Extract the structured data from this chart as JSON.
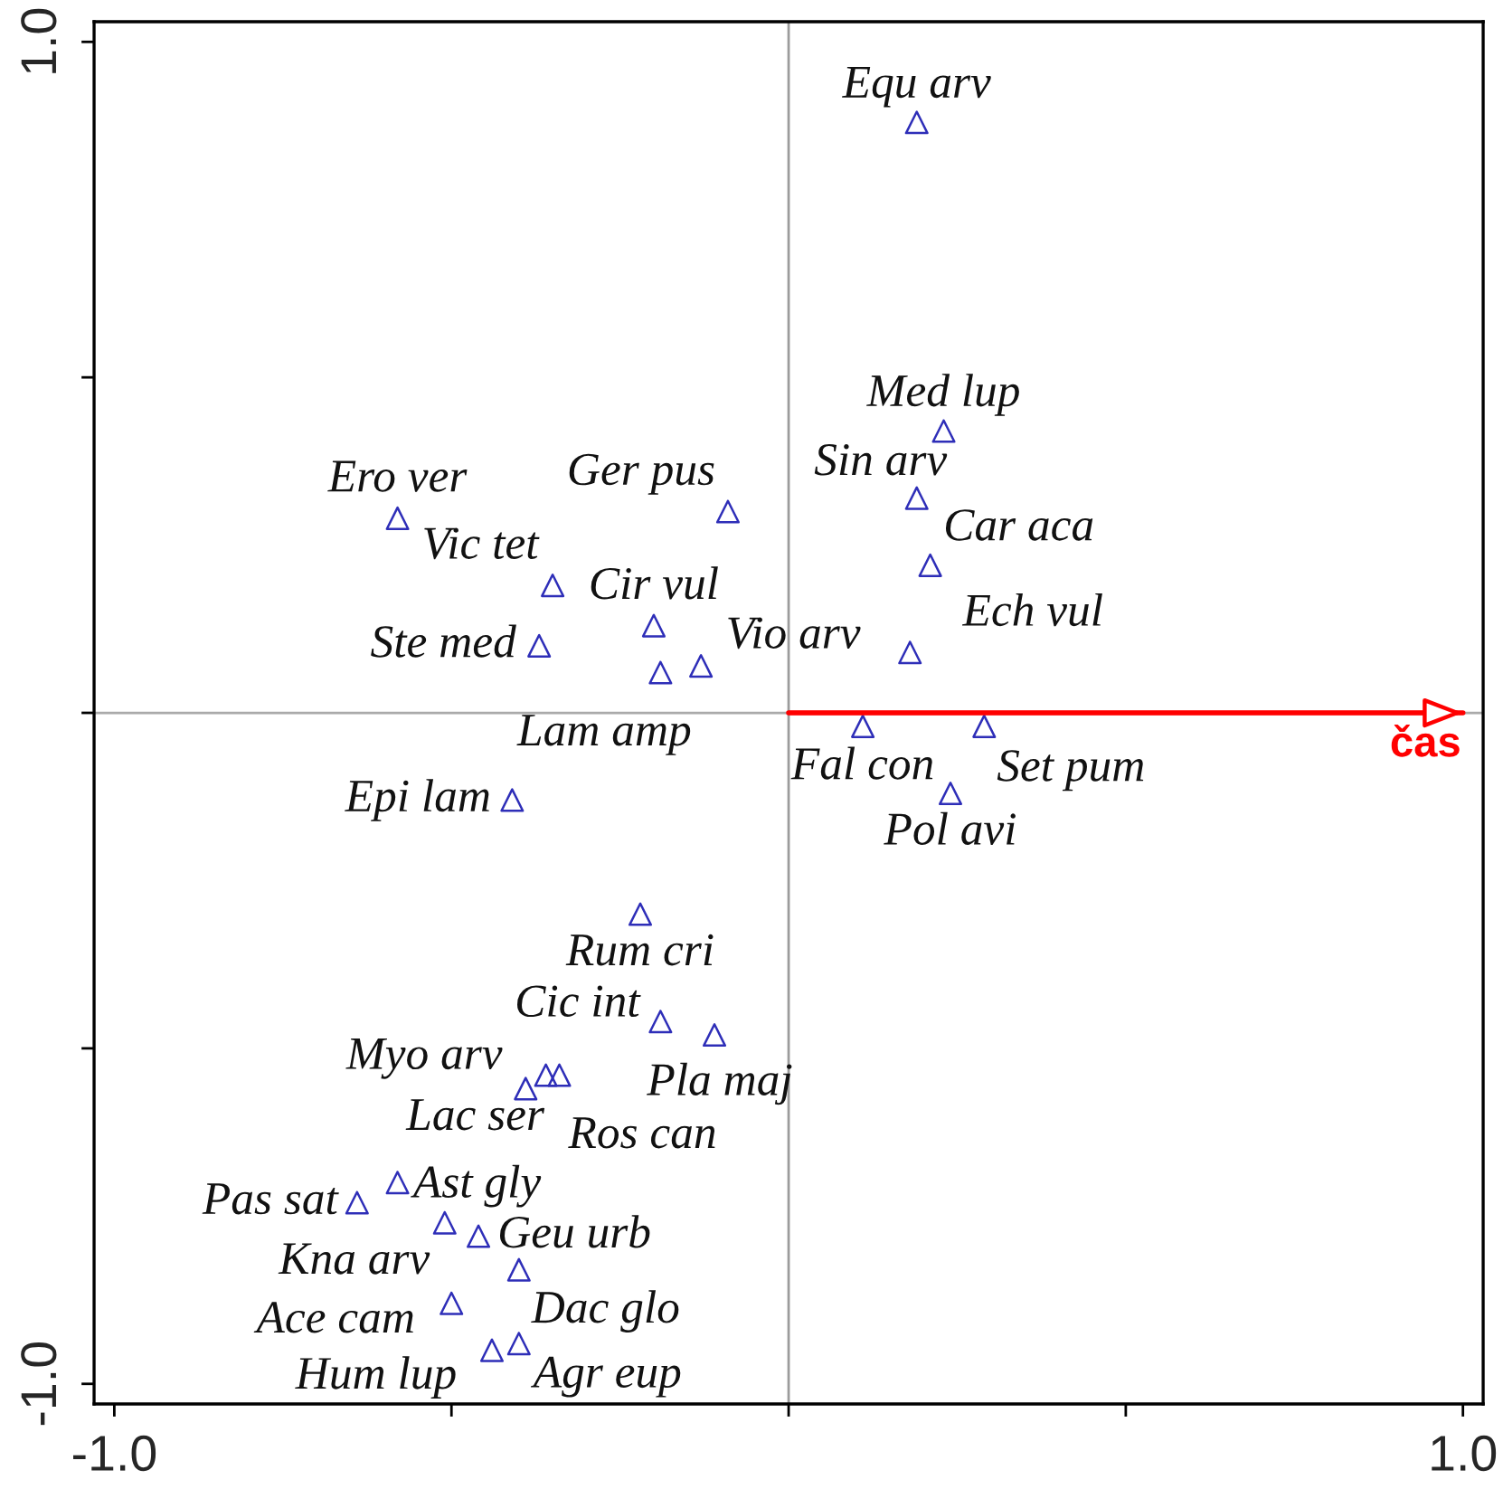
{
  "chart_data": {
    "type": "scatter",
    "xlim": [
      -1.03,
      1.03
    ],
    "ylim": [
      -1.03,
      1.03
    ],
    "xticks": [
      {
        "value": -1.0,
        "label": "-1.0"
      },
      {
        "value": -0.5,
        "label": null
      },
      {
        "value": 0,
        "label": null
      },
      {
        "value": 0.5,
        "label": null
      },
      {
        "value": 1.0,
        "label": "1.0"
      }
    ],
    "yticks": [
      {
        "value": -1.0,
        "label": "-1.0"
      },
      {
        "value": -0.5,
        "label": null
      },
      {
        "value": 0,
        "label": null
      },
      {
        "value": 0.5,
        "label": null
      },
      {
        "value": 1.0,
        "label": "1.0"
      }
    ],
    "ref_lines": [
      {
        "axis": "x",
        "value": 0,
        "color": "#9c9c9c"
      },
      {
        "axis": "y",
        "value": 0,
        "color": "#aaaaaa"
      }
    ],
    "series": [
      {
        "color": "#2e2eb8",
        "marker": "triangle",
        "x": [
          0.19,
          0.23,
          0.19,
          -0.09,
          -0.58,
          0.21,
          -0.35,
          -0.2,
          0.18,
          -0.37,
          -0.13,
          -0.19,
          0.11,
          0.29,
          0.24,
          -0.41,
          -0.22,
          -0.19,
          -0.11,
          -0.39,
          -0.36,
          -0.34,
          -0.58,
          -0.64,
          -0.51,
          -0.46,
          -0.4,
          -0.5,
          -0.44,
          -0.4
        ],
        "values": [
          0.88,
          0.42,
          0.32,
          0.3,
          0.29,
          0.22,
          0.19,
          0.13,
          0.09,
          0.1,
          0.07,
          0.06,
          -0.02,
          -0.02,
          -0.12,
          -0.13,
          -0.3,
          -0.46,
          -0.48,
          -0.56,
          -0.54,
          -0.54,
          -0.7,
          -0.73,
          -0.76,
          -0.78,
          -0.83,
          -0.88,
          -0.95,
          -0.94
        ]
      },
      {
        "type": "line",
        "name": "čas",
        "color": "#ff0000",
        "marker": "none",
        "x": [
          0,
          1.0
        ],
        "values": [
          0,
          0
        ]
      }
    ],
    "annotations": [
      {
        "text": "Equ arv",
        "x": 0.19,
        "y": 0.88
      },
      {
        "text": "Med lup",
        "x": 0.23,
        "y": 0.42
      },
      {
        "text": "Sin arv",
        "x": 0.19,
        "y": 0.32
      },
      {
        "text": "Ger pus",
        "x": -0.09,
        "y": 0.3
      },
      {
        "text": "Ero ver",
        "x": -0.58,
        "y": 0.29
      },
      {
        "text": "Car aca",
        "x": 0.21,
        "y": 0.22
      },
      {
        "text": "Vic tet",
        "x": -0.35,
        "y": 0.19
      },
      {
        "text": "Cir vul",
        "x": -0.2,
        "y": 0.13
      },
      {
        "text": "Ech vul",
        "x": 0.18,
        "y": 0.09
      },
      {
        "text": "Ste med",
        "x": -0.37,
        "y": 0.1
      },
      {
        "text": "Vio arv",
        "x": -0.13,
        "y": 0.07
      },
      {
        "text": "Lam amp",
        "x": -0.19,
        "y": 0.06
      },
      {
        "text": "Fal con",
        "x": 0.11,
        "y": -0.02
      },
      {
        "text": "Set pum",
        "x": 0.29,
        "y": -0.02
      },
      {
        "text": "Pol avi",
        "x": 0.24,
        "y": -0.12
      },
      {
        "text": "Epi lam",
        "x": -0.41,
        "y": -0.13
      },
      {
        "text": "Rum cri",
        "x": -0.22,
        "y": -0.3
      },
      {
        "text": "Cic int",
        "x": -0.19,
        "y": -0.46
      },
      {
        "text": "Pla maj",
        "x": -0.11,
        "y": -0.48
      },
      {
        "text": "Myo arv",
        "x": -0.39,
        "y": -0.56
      },
      {
        "text": "Lac ser",
        "x": -0.36,
        "y": -0.54
      },
      {
        "text": "Ros can",
        "x": -0.34,
        "y": -0.54
      },
      {
        "text": "Ast gly",
        "x": -0.58,
        "y": -0.7
      },
      {
        "text": "Pas sat",
        "x": -0.64,
        "y": -0.73
      },
      {
        "text": "Kna arv",
        "x": -0.51,
        "y": -0.76
      },
      {
        "text": "Geu urb",
        "x": -0.46,
        "y": -0.78
      },
      {
        "text": "Dac glo",
        "x": -0.4,
        "y": -0.83
      },
      {
        "text": "Ace cam",
        "x": -0.5,
        "y": -0.88
      },
      {
        "text": "Hum lup",
        "x": -0.44,
        "y": -0.95
      },
      {
        "text": "Agr eup",
        "x": -0.4,
        "y": -0.94
      }
    ]
  }
}
